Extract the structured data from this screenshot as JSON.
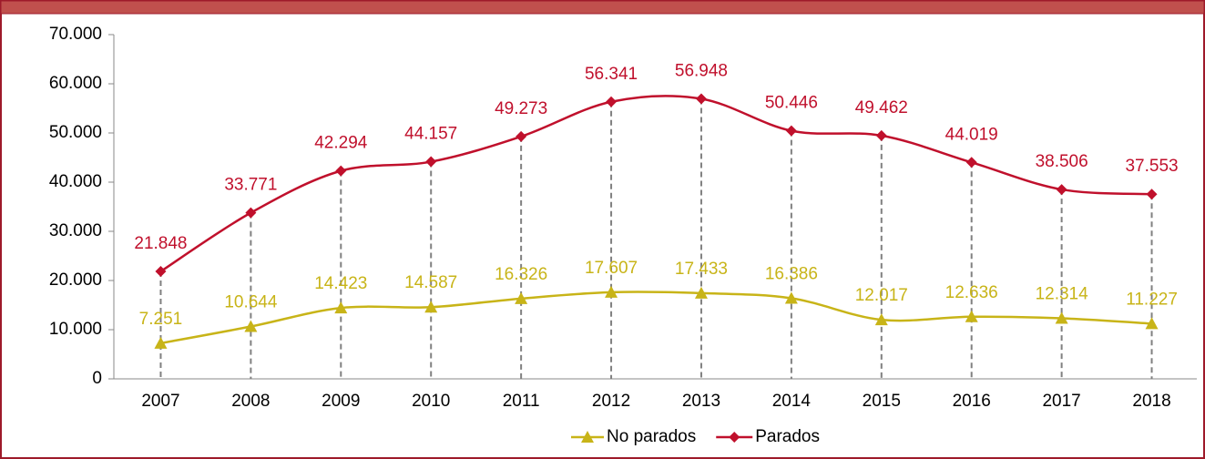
{
  "chart_data": {
    "type": "line",
    "categories": [
      "2007",
      "2008",
      "2009",
      "2010",
      "2011",
      "2012",
      "2013",
      "2014",
      "2015",
      "2016",
      "2017",
      "2018"
    ],
    "series": [
      {
        "name": "No parados",
        "color": "#c8b418",
        "marker": "triangle",
        "values": [
          7251,
          10644,
          14423,
          14587,
          16326,
          17607,
          17433,
          16386,
          12017,
          12636,
          12314,
          11227
        ],
        "value_labels": [
          "7.251",
          "10.644",
          "14.423",
          "14.587",
          "16.326",
          "17.607",
          "17.433",
          "16.386",
          "12.017",
          "12.636",
          "12.314",
          "11.227"
        ]
      },
      {
        "name": "Parados",
        "color": "#c0102c",
        "marker": "diamond",
        "values": [
          21848,
          33771,
          42294,
          44157,
          49273,
          56341,
          56948,
          50446,
          49462,
          44019,
          38506,
          37553
        ],
        "value_labels": [
          "21.848",
          "33.771",
          "42.294",
          "44.157",
          "49.273",
          "56.341",
          "56.948",
          "50.446",
          "49.462",
          "44.019",
          "38.506",
          "37.553"
        ]
      }
    ],
    "ylim": [
      0,
      70000
    ],
    "yticks": [
      0,
      {
        "value": 10000,
        "label": "10.000"
      },
      {
        "value": 20000,
        "label": "20.000"
      },
      {
        "value": 30000,
        "label": "30.000"
      },
      {
        "value": 40000,
        "label": "40.000"
      },
      {
        "value": 50000,
        "label": "50.000"
      },
      {
        "value": 60000,
        "label": "60.000"
      },
      {
        "value": 70000,
        "label": "70.000"
      }
    ],
    "smooth": true,
    "drop_lines": true,
    "legend": "bottom"
  }
}
